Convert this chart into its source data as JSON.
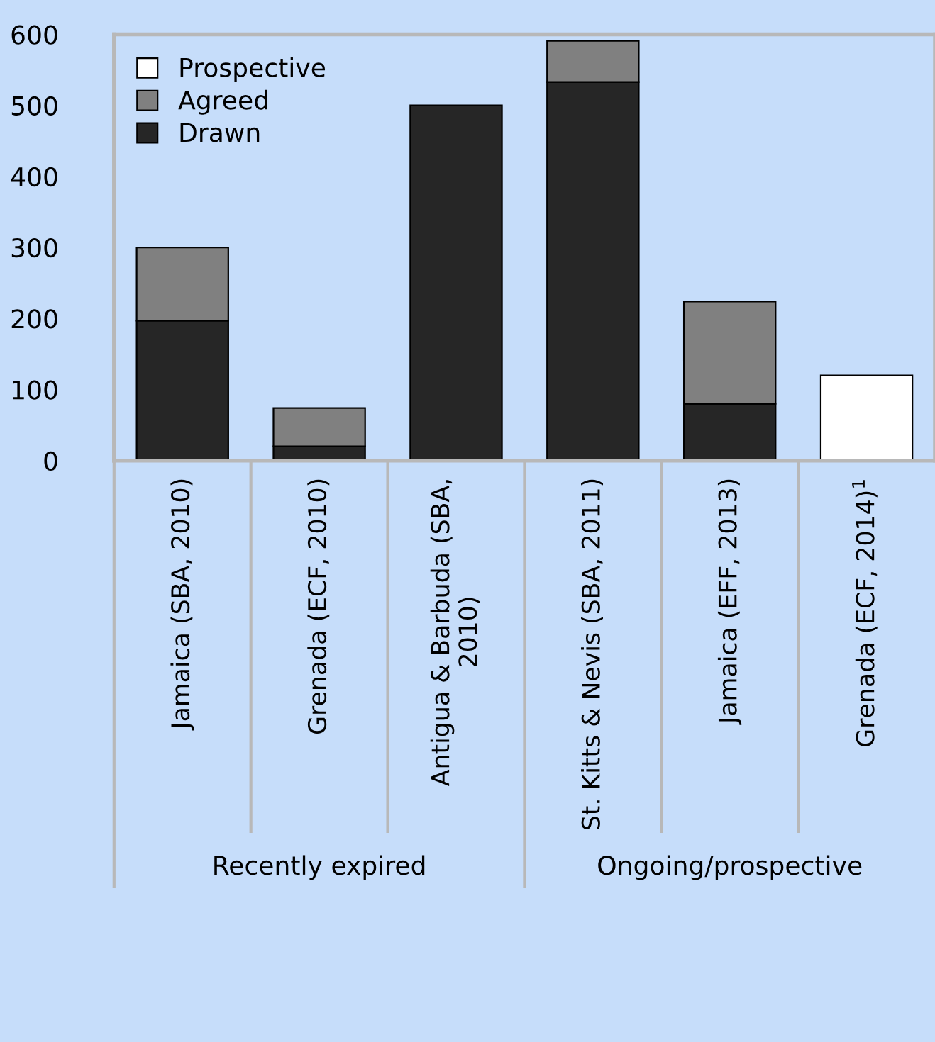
{
  "chart_data": {
    "type": "bar",
    "stacked": true,
    "categories": [
      "Jamaica (SBA, 2010)",
      "Grenada (ECF, 2010)",
      "Antigua & Barbuda (SBA,\n2010)",
      "St. Kitts & Nevis (SBA, 2011)",
      "Jamaica (EFF, 2013)",
      "Grenada (ECF, 2014)$^{1}$"
    ],
    "series": [
      {
        "name": "Drawn",
        "color": "#262626",
        "values": [
          197,
          20,
          500,
          533,
          80,
          null
        ]
      },
      {
        "name": "Agreed",
        "color": "#808080",
        "values": [
          103,
          54,
          null,
          58,
          144,
          null
        ]
      },
      {
        "name": "Prospective",
        "color": "#ffffff",
        "values": [
          null,
          null,
          null,
          null,
          null,
          120
        ]
      }
    ],
    "ylim": [
      0,
      600
    ],
    "yticks": [
      0,
      100,
      200,
      300,
      400,
      500,
      600
    ],
    "annotations": [
      "Recently expired",
      "Ongoing/prospective"
    ],
    "legend": "top left",
    "grid": false
  }
}
